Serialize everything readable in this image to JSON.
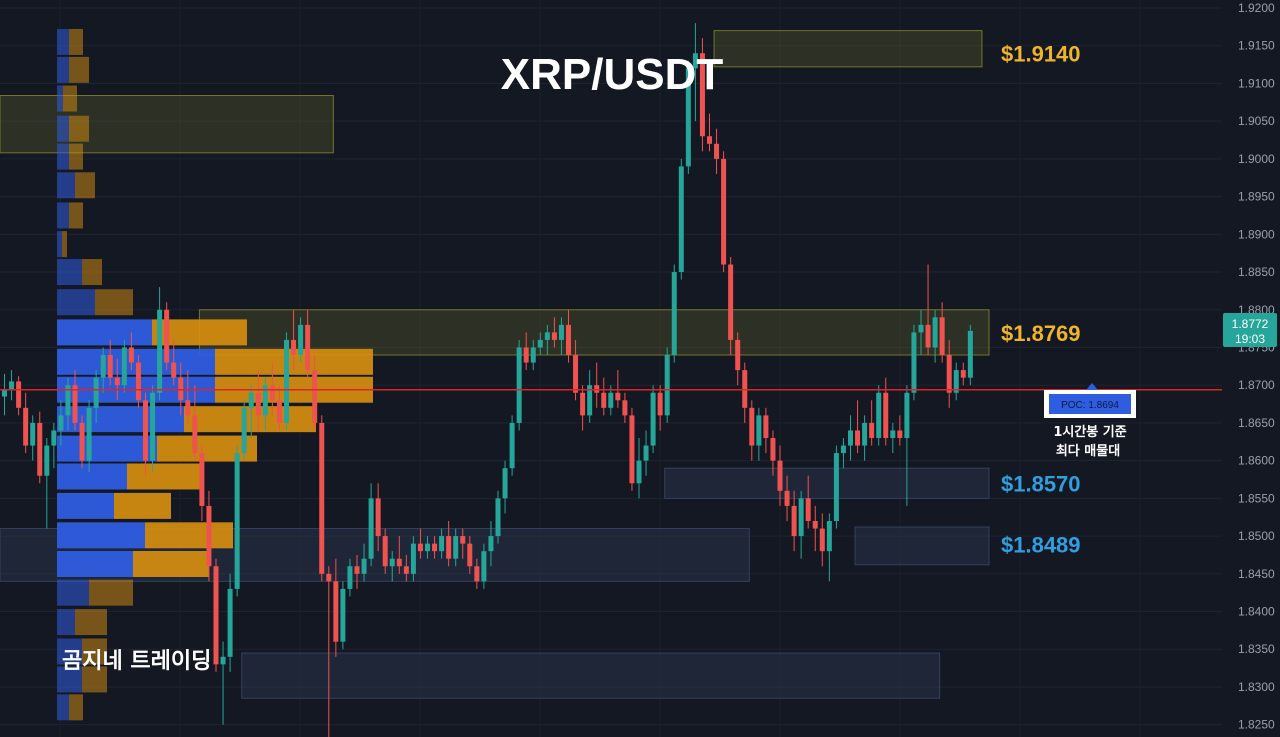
{
  "chart_data": {
    "type": "candlestick",
    "title": "XRP/USDT",
    "watermark": "곰지네 트레이딩",
    "y_ticks": [
      "1.9200",
      "1.9150",
      "1.9100",
      "1.9050",
      "1.9000",
      "1.8950",
      "1.8900",
      "1.8850",
      "1.8800",
      "1.8750",
      "1.8700",
      "1.8650",
      "1.8600",
      "1.8550",
      "1.8500",
      "1.8450",
      "1.8400",
      "1.8350",
      "1.8300",
      "1.8250"
    ],
    "ylim": [
      1.8235,
      1.92
    ],
    "current_price": {
      "value": "1.8772",
      "countdown": "19:03",
      "color": "#26a69a"
    },
    "poc": {
      "label": "POC: 1.8694",
      "value": 1.8694,
      "note_line1": "1시간봉 기준",
      "note_line2": "최다 매물대",
      "line_color": "#e02424"
    },
    "levels": [
      {
        "label": "$1.9140",
        "value": 1.914,
        "color": "#f0b429"
      },
      {
        "label": "$1.8769",
        "value": 1.8769,
        "color": "#f0b429"
      },
      {
        "label": "$1.8570",
        "value": 1.857,
        "color": "#2f9fe0"
      },
      {
        "label": "$1.8489",
        "value": 1.8489,
        "color": "#2f9fe0"
      }
    ],
    "candles": [
      [
        1.8685,
        1.8715,
        1.866,
        1.8695
      ],
      [
        1.8695,
        1.872,
        1.868,
        1.8705
      ],
      [
        1.8705,
        1.8712,
        1.866,
        1.867
      ],
      [
        1.867,
        1.869,
        1.861,
        1.862
      ],
      [
        1.862,
        1.866,
        1.86,
        1.865
      ],
      [
        1.865,
        1.8665,
        1.857,
        1.858
      ],
      [
        1.858,
        1.863,
        1.851,
        1.862
      ],
      [
        1.862,
        1.865,
        1.859,
        1.864
      ],
      [
        1.864,
        1.868,
        1.862,
        1.866
      ],
      [
        1.866,
        1.871,
        1.864,
        1.87
      ],
      [
        1.87,
        1.872,
        1.864,
        1.865
      ],
      [
        1.865,
        1.866,
        1.859,
        1.86
      ],
      [
        1.86,
        1.868,
        1.8585,
        1.867
      ],
      [
        1.867,
        1.872,
        1.865,
        1.871
      ],
      [
        1.871,
        1.875,
        1.869,
        1.874
      ],
      [
        1.874,
        1.876,
        1.87,
        1.871
      ],
      [
        1.871,
        1.8735,
        1.868,
        1.87
      ],
      [
        1.87,
        1.876,
        1.869,
        1.875
      ],
      [
        1.875,
        1.877,
        1.872,
        1.873
      ],
      [
        1.873,
        1.874,
        1.867,
        1.868
      ],
      [
        1.868,
        1.869,
        1.858,
        1.86
      ],
      [
        1.86,
        1.87,
        1.8585,
        1.869
      ],
      [
        1.869,
        1.883,
        1.868,
        1.88
      ],
      [
        1.88,
        1.881,
        1.872,
        1.873
      ],
      [
        1.873,
        1.876,
        1.87,
        1.871
      ],
      [
        1.871,
        1.873,
        1.866,
        1.868
      ],
      [
        1.868,
        1.872,
        1.865,
        1.866
      ],
      [
        1.866,
        1.87,
        1.86,
        1.861
      ],
      [
        1.861,
        1.862,
        1.852,
        1.854
      ],
      [
        1.854,
        1.856,
        1.844,
        1.846
      ],
      [
        1.846,
        1.847,
        1.832,
        1.833
      ],
      [
        1.833,
        1.836,
        1.825,
        1.834
      ],
      [
        1.834,
        1.845,
        1.832,
        1.843
      ],
      [
        1.843,
        1.862,
        1.842,
        1.861
      ],
      [
        1.861,
        1.868,
        1.86,
        1.867
      ],
      [
        1.867,
        1.87,
        1.863,
        1.869
      ],
      [
        1.869,
        1.872,
        1.864,
        1.866
      ],
      [
        1.866,
        1.871,
        1.864,
        1.87
      ],
      [
        1.87,
        1.873,
        1.866,
        1.868
      ],
      [
        1.868,
        1.87,
        1.864,
        1.865
      ],
      [
        1.865,
        1.877,
        1.864,
        1.876
      ],
      [
        1.876,
        1.88,
        1.872,
        1.874
      ],
      [
        1.874,
        1.879,
        1.873,
        1.878
      ],
      [
        1.878,
        1.88,
        1.871,
        1.872
      ],
      [
        1.872,
        1.874,
        1.864,
        1.865
      ],
      [
        1.865,
        1.866,
        1.844,
        1.845
      ],
      [
        1.845,
        1.846,
        1.823,
        1.844
      ],
      [
        1.844,
        1.847,
        1.834,
        1.836
      ],
      [
        1.836,
        1.844,
        1.835,
        1.843
      ],
      [
        1.843,
        1.847,
        1.842,
        1.846
      ],
      [
        1.846,
        1.8475,
        1.843,
        1.845
      ],
      [
        1.845,
        1.849,
        1.844,
        1.847
      ],
      [
        1.847,
        1.857,
        1.846,
        1.855
      ],
      [
        1.855,
        1.857,
        1.848,
        1.85
      ],
      [
        1.85,
        1.851,
        1.845,
        1.846
      ],
      [
        1.846,
        1.848,
        1.844,
        1.847
      ],
      [
        1.847,
        1.85,
        1.845,
        1.846
      ],
      [
        1.846,
        1.8475,
        1.844,
        1.845
      ],
      [
        1.845,
        1.85,
        1.844,
        1.849
      ],
      [
        1.849,
        1.851,
        1.847,
        1.848
      ],
      [
        1.848,
        1.85,
        1.847,
        1.849
      ],
      [
        1.849,
        1.85,
        1.847,
        1.848
      ],
      [
        1.848,
        1.851,
        1.847,
        1.85
      ],
      [
        1.85,
        1.852,
        1.846,
        1.847
      ],
      [
        1.847,
        1.851,
        1.846,
        1.85
      ],
      [
        1.85,
        1.851,
        1.847,
        1.849
      ],
      [
        1.849,
        1.85,
        1.845,
        1.846
      ],
      [
        1.846,
        1.847,
        1.843,
        1.844
      ],
      [
        1.844,
        1.849,
        1.843,
        1.848
      ],
      [
        1.848,
        1.852,
        1.846,
        1.85
      ],
      [
        1.85,
        1.856,
        1.849,
        1.855
      ],
      [
        1.855,
        1.86,
        1.853,
        1.859
      ],
      [
        1.859,
        1.866,
        1.858,
        1.865
      ],
      [
        1.865,
        1.876,
        1.864,
        1.875
      ],
      [
        1.875,
        1.877,
        1.872,
        1.873
      ],
      [
        1.873,
        1.876,
        1.872,
        1.875
      ],
      [
        1.875,
        1.877,
        1.874,
        1.876
      ],
      [
        1.876,
        1.878,
        1.874,
        1.877
      ],
      [
        1.877,
        1.879,
        1.875,
        1.876
      ],
      [
        1.876,
        1.879,
        1.874,
        1.878
      ],
      [
        1.878,
        1.88,
        1.873,
        1.874
      ],
      [
        1.874,
        1.876,
        1.868,
        1.869
      ],
      [
        1.869,
        1.87,
        1.864,
        1.866
      ],
      [
        1.866,
        1.872,
        1.865,
        1.87
      ],
      [
        1.87,
        1.873,
        1.867,
        1.869
      ],
      [
        1.869,
        1.871,
        1.866,
        1.867
      ],
      [
        1.867,
        1.87,
        1.866,
        1.869
      ],
      [
        1.869,
        1.872,
        1.867,
        1.868
      ],
      [
        1.868,
        1.869,
        1.865,
        1.866
      ],
      [
        1.866,
        1.867,
        1.856,
        1.857
      ],
      [
        1.857,
        1.863,
        1.855,
        1.86
      ],
      [
        1.86,
        1.864,
        1.858,
        1.862
      ],
      [
        1.862,
        1.87,
        1.861,
        1.869
      ],
      [
        1.869,
        1.87,
        1.864,
        1.866
      ],
      [
        1.866,
        1.875,
        1.865,
        1.874
      ],
      [
        1.874,
        1.886,
        1.873,
        1.885
      ],
      [
        1.885,
        1.9,
        1.884,
        1.899
      ],
      [
        1.899,
        1.913,
        1.898,
        1.912
      ],
      [
        1.912,
        1.918,
        1.905,
        1.914
      ],
      [
        1.914,
        1.916,
        1.901,
        1.903
      ],
      [
        1.903,
        1.906,
        1.901,
        1.902
      ],
      [
        1.902,
        1.904,
        1.898,
        1.9
      ],
      [
        1.9,
        1.901,
        1.885,
        1.886
      ],
      [
        1.886,
        1.887,
        1.874,
        1.876
      ],
      [
        1.876,
        1.877,
        1.87,
        1.872
      ],
      [
        1.872,
        1.873,
        1.865,
        1.867
      ],
      [
        1.867,
        1.868,
        1.86,
        1.862
      ],
      [
        1.862,
        1.867,
        1.86,
        1.866
      ],
      [
        1.866,
        1.867,
        1.861,
        1.863
      ],
      [
        1.863,
        1.864,
        1.858,
        1.86
      ],
      [
        1.86,
        1.862,
        1.854,
        1.856
      ],
      [
        1.856,
        1.858,
        1.852,
        1.854
      ],
      [
        1.854,
        1.856,
        1.848,
        1.85
      ],
      [
        1.85,
        1.856,
        1.847,
        1.855
      ],
      [
        1.855,
        1.858,
        1.851,
        1.852
      ],
      [
        1.852,
        1.854,
        1.848,
        1.851
      ],
      [
        1.851,
        1.853,
        1.846,
        1.848
      ],
      [
        1.848,
        1.853,
        1.844,
        1.852
      ],
      [
        1.852,
        1.862,
        1.851,
        1.861
      ],
      [
        1.861,
        1.863,
        1.859,
        1.862
      ],
      [
        1.862,
        1.866,
        1.86,
        1.864
      ],
      [
        1.864,
        1.868,
        1.861,
        1.862
      ],
      [
        1.862,
        1.866,
        1.86,
        1.865
      ],
      [
        1.865,
        1.868,
        1.862,
        1.863
      ],
      [
        1.863,
        1.87,
        1.862,
        1.869
      ],
      [
        1.869,
        1.871,
        1.862,
        1.863
      ],
      [
        1.863,
        1.865,
        1.861,
        1.864
      ],
      [
        1.864,
        1.866,
        1.862,
        1.863
      ],
      [
        1.863,
        1.87,
        1.854,
        1.869
      ],
      [
        1.869,
        1.878,
        1.868,
        1.877
      ],
      [
        1.877,
        1.88,
        1.874,
        1.878
      ],
      [
        1.878,
        1.886,
        1.874,
        1.875
      ],
      [
        1.875,
        1.88,
        1.873,
        1.879
      ],
      [
        1.879,
        1.881,
        1.873,
        1.874
      ],
      [
        1.874,
        1.876,
        1.867,
        1.869
      ],
      [
        1.869,
        1.873,
        1.868,
        1.872
      ],
      [
        1.872,
        1.873,
        1.87,
        1.871
      ],
      [
        1.871,
        1.878,
        1.87,
        1.8772
      ]
    ],
    "volume_profile": [
      {
        "price": 1.9155,
        "up": 12,
        "down": 14
      },
      {
        "price": 1.9118,
        "up": 12,
        "down": 20
      },
      {
        "price": 1.908,
        "up": 6,
        "down": 14
      },
      {
        "price": 1.904,
        "up": 12,
        "down": 20
      },
      {
        "price": 1.9003,
        "up": 12,
        "down": 14
      },
      {
        "price": 1.8965,
        "up": 18,
        "down": 20
      },
      {
        "price": 1.8925,
        "up": 12,
        "down": 14
      },
      {
        "price": 1.8887,
        "up": 5,
        "down": 5
      },
      {
        "price": 1.885,
        "up": 25,
        "down": 20
      },
      {
        "price": 1.881,
        "up": 38,
        "down": 38
      },
      {
        "price": 1.877,
        "up": 95,
        "down": 95
      },
      {
        "price": 1.8731,
        "up": 158,
        "down": 158
      },
      {
        "price": 1.8694,
        "up": 158,
        "down": 158
      },
      {
        "price": 1.8655,
        "up": 127,
        "down": 132
      },
      {
        "price": 1.8616,
        "up": 100,
        "down": 100
      },
      {
        "price": 1.8579,
        "up": 70,
        "down": 76
      },
      {
        "price": 1.854,
        "up": 57,
        "down": 57
      },
      {
        "price": 1.8501,
        "up": 88,
        "down": 88
      },
      {
        "price": 1.8463,
        "up": 76,
        "down": 76
      },
      {
        "price": 1.8425,
        "up": 32,
        "down": 44
      },
      {
        "price": 1.8386,
        "up": 18,
        "down": 32
      },
      {
        "price": 1.8347,
        "up": 25,
        "down": 25
      },
      {
        "price": 1.831,
        "up": 25,
        "down": 25
      },
      {
        "price": 1.8273,
        "up": 12,
        "down": 14
      }
    ],
    "zones": [
      {
        "kind": "supply",
        "y_top": 1.917,
        "y_bottom": 1.9122,
        "x_from_candle": 101,
        "x_to_candle": 139
      },
      {
        "kind": "supply",
        "y_top": 1.9084,
        "y_bottom": 1.9008,
        "x_from_candle": 0,
        "x_to_candle": 47
      },
      {
        "kind": "supply",
        "y_top": 1.88,
        "y_bottom": 1.874,
        "x_from_candle": 28,
        "x_to_candle": 140
      },
      {
        "kind": "demand",
        "y_top": 1.859,
        "y_bottom": 1.855,
        "x_from_candle": 94,
        "x_to_candle": 140
      },
      {
        "kind": "demand",
        "y_top": 1.851,
        "y_bottom": 1.844,
        "x_from_candle": 0,
        "x_to_candle": 106
      },
      {
        "kind": "demand",
        "y_top": 1.8512,
        "y_bottom": 1.8462,
        "x_from_candle": 121,
        "x_to_candle": 140
      },
      {
        "kind": "demand",
        "y_top": 1.8345,
        "y_bottom": 1.8285,
        "x_from_candle": 34,
        "x_to_candle": 133
      }
    ],
    "colors": {
      "up": "#26a69a",
      "down": "#ef5350",
      "profile_up": "#2f5de0",
      "profile_down": "#d9900f",
      "supply": "#8a8a2a",
      "demand": "#3a4a6a"
    }
  }
}
